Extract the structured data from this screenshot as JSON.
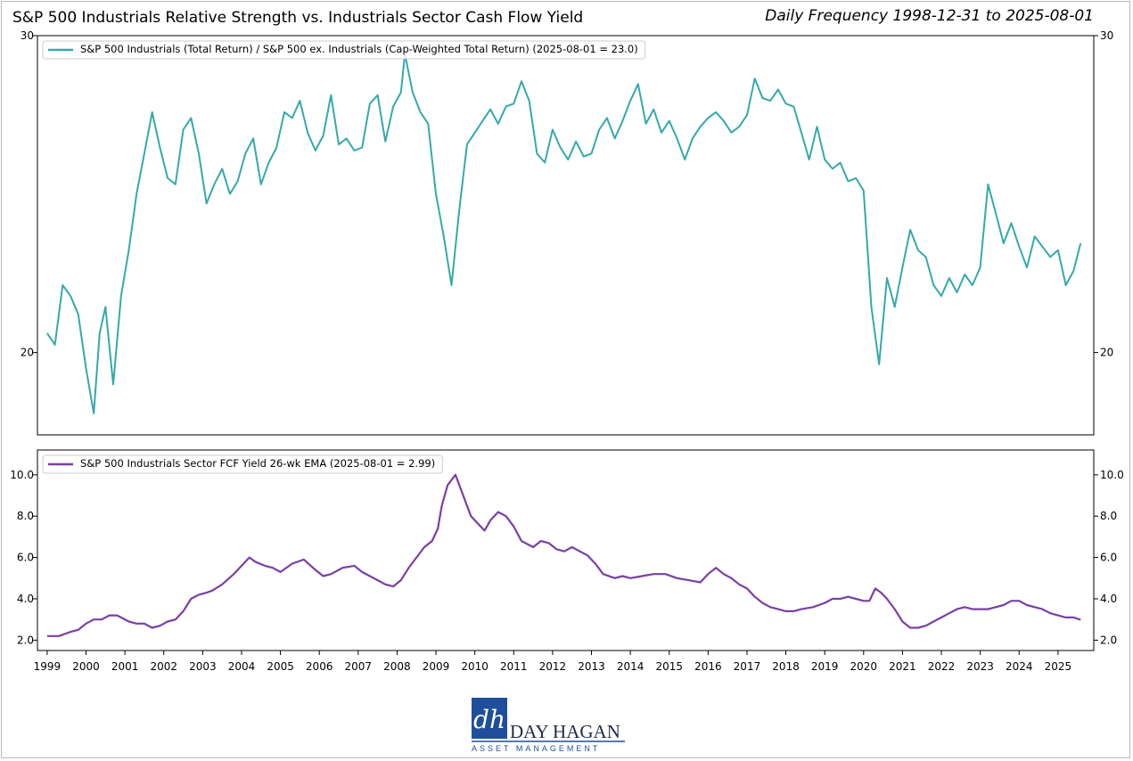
{
  "header": {
    "title": "S&P 500 Industrials Relative Strength vs. Industrials Sector Cash Flow Yield",
    "subtitle": "Daily Frequency 1998-12-31 to 2025-08-01"
  },
  "colors": {
    "series_top": "#36a9a9",
    "series_bottom": "#7a3fa4",
    "axis": "#000000",
    "logo_blue": "#1f4e9c"
  },
  "logo": {
    "monogram": "dh",
    "name": "DAY HAGAN",
    "tagline": "ASSET MANAGEMENT"
  },
  "chart_data": [
    {
      "type": "line",
      "panel": "top",
      "series": [
        {
          "name": "S&P 500 Industrials (Total Return) / S&P 500 ex. Industrials (Cap-Weighted Total Return) (2025-08-01 = 23.0)",
          "x": [
            1999.0,
            1999.2,
            1999.4,
            1999.6,
            1999.8,
            2000.0,
            2000.2,
            2000.35,
            2000.5,
            2000.7,
            2000.9,
            2001.1,
            2001.3,
            2001.5,
            2001.7,
            2001.9,
            2002.1,
            2002.3,
            2002.5,
            2002.7,
            2002.9,
            2003.1,
            2003.3,
            2003.5,
            2003.7,
            2003.9,
            2004.1,
            2004.3,
            2004.5,
            2004.7,
            2004.9,
            2005.1,
            2005.3,
            2005.5,
            2005.7,
            2005.9,
            2006.1,
            2006.3,
            2006.5,
            2006.7,
            2006.9,
            2007.1,
            2007.3,
            2007.5,
            2007.7,
            2007.9,
            2008.1,
            2008.2,
            2008.4,
            2008.6,
            2008.8,
            2009.0,
            2009.2,
            2009.4,
            2009.6,
            2009.8,
            2010.0,
            2010.2,
            2010.4,
            2010.6,
            2010.8,
            2011.0,
            2011.2,
            2011.4,
            2011.6,
            2011.8,
            2012.0,
            2012.2,
            2012.4,
            2012.6,
            2012.8,
            2013.0,
            2013.2,
            2013.4,
            2013.6,
            2013.8,
            2014.0,
            2014.2,
            2014.4,
            2014.6,
            2014.8,
            2015.0,
            2015.2,
            2015.4,
            2015.6,
            2015.8,
            2016.0,
            2016.2,
            2016.4,
            2016.6,
            2016.8,
            2017.0,
            2017.2,
            2017.4,
            2017.6,
            2017.8,
            2018.0,
            2018.2,
            2018.4,
            2018.6,
            2018.8,
            2019.0,
            2019.2,
            2019.4,
            2019.6,
            2019.8,
            2020.0,
            2020.2,
            2020.4,
            2020.6,
            2020.8,
            2021.0,
            2021.2,
            2021.4,
            2021.6,
            2021.8,
            2022.0,
            2022.2,
            2022.4,
            2022.6,
            2022.8,
            2023.0,
            2023.2,
            2023.4,
            2023.6,
            2023.8,
            2024.0,
            2024.2,
            2024.4,
            2024.6,
            2024.8,
            2025.0,
            2025.2,
            2025.4,
            2025.58
          ],
          "y": [
            20.5,
            20.2,
            21.8,
            21.5,
            21.0,
            19.6,
            18.5,
            20.5,
            21.2,
            19.2,
            21.5,
            22.8,
            24.5,
            25.8,
            27.2,
            26.0,
            25.0,
            24.8,
            26.6,
            27.0,
            25.8,
            24.2,
            24.8,
            25.3,
            24.5,
            24.9,
            25.8,
            26.3,
            24.8,
            25.5,
            26.0,
            27.2,
            27.0,
            27.6,
            26.5,
            25.9,
            26.4,
            27.8,
            26.1,
            26.3,
            25.9,
            26.0,
            27.5,
            27.8,
            26.2,
            27.4,
            27.9,
            29.3,
            27.9,
            27.2,
            26.8,
            24.5,
            23.2,
            21.8,
            24.0,
            26.1,
            26.5,
            26.9,
            27.3,
            26.8,
            27.4,
            27.5,
            28.3,
            27.6,
            25.8,
            25.5,
            26.6,
            26.0,
            25.6,
            26.2,
            25.7,
            25.8,
            26.6,
            27.0,
            26.3,
            26.9,
            27.6,
            28.2,
            26.8,
            27.3,
            26.5,
            26.9,
            26.3,
            25.6,
            26.3,
            26.7,
            27.0,
            27.2,
            26.9,
            26.5,
            26.7,
            27.1,
            28.4,
            27.7,
            27.6,
            28.0,
            27.5,
            27.4,
            26.5,
            25.6,
            26.7,
            25.6,
            25.3,
            25.5,
            24.9,
            25.0,
            24.6,
            21.2,
            19.7,
            22.0,
            21.2,
            22.3,
            23.4,
            22.8,
            22.6,
            21.8,
            21.5,
            22.0,
            21.6,
            22.1,
            21.8,
            22.3,
            24.8,
            23.9,
            23.0,
            23.6,
            22.9,
            22.3,
            23.2,
            22.9,
            22.6,
            22.8,
            21.8,
            22.2,
            23.0
          ]
        }
      ],
      "ylim": [
        18.0,
        30.0
      ],
      "yticks": [
        "20",
        "30"
      ],
      "xlim": [
        1998.75,
        2025.92
      ],
      "legend_placement": "upper-left",
      "grid": false
    },
    {
      "type": "line",
      "panel": "bottom",
      "series": [
        {
          "name": "S&P 500 Industrials Sector FCF Yield 26-wk EMA (2025-08-01 = 2.99)",
          "x": [
            1999.0,
            1999.3,
            1999.6,
            1999.8,
            2000.0,
            2000.2,
            2000.4,
            2000.6,
            2000.8,
            2000.9,
            2001.1,
            2001.3,
            2001.5,
            2001.7,
            2001.9,
            2002.1,
            2002.3,
            2002.5,
            2002.7,
            2002.9,
            2003.1,
            2003.25,
            2003.5,
            2003.8,
            2004.0,
            2004.2,
            2004.35,
            2004.6,
            2004.8,
            2005.0,
            2005.3,
            2005.6,
            2005.9,
            2006.1,
            2006.3,
            2006.6,
            2006.9,
            2007.1,
            2007.3,
            2007.5,
            2007.7,
            2007.9,
            2008.1,
            2008.3,
            2008.5,
            2008.7,
            2008.9,
            2009.05,
            2009.15,
            2009.3,
            2009.5,
            2009.7,
            2009.9,
            2010.1,
            2010.25,
            2010.4,
            2010.6,
            2010.8,
            2011.0,
            2011.2,
            2011.5,
            2011.7,
            2011.9,
            2012.1,
            2012.3,
            2012.5,
            2012.7,
            2012.9,
            2013.1,
            2013.3,
            2013.6,
            2013.8,
            2014.0,
            2014.3,
            2014.6,
            2014.9,
            2015.2,
            2015.5,
            2015.8,
            2016.0,
            2016.2,
            2016.4,
            2016.6,
            2016.8,
            2017.0,
            2017.2,
            2017.4,
            2017.6,
            2017.8,
            2018.0,
            2018.2,
            2018.4,
            2018.7,
            2019.0,
            2019.2,
            2019.4,
            2019.6,
            2019.8,
            2020.0,
            2020.15,
            2020.3,
            2020.45,
            2020.6,
            2020.8,
            2021.0,
            2021.2,
            2021.4,
            2021.6,
            2021.8,
            2022.0,
            2022.2,
            2022.4,
            2022.6,
            2022.8,
            2023.0,
            2023.2,
            2023.4,
            2023.6,
            2023.8,
            2024.0,
            2024.2,
            2024.4,
            2024.6,
            2024.8,
            2025.0,
            2025.2,
            2025.4,
            2025.58
          ],
          "y": [
            2.2,
            2.2,
            2.4,
            2.5,
            2.8,
            3.0,
            3.0,
            3.2,
            3.2,
            3.1,
            2.9,
            2.8,
            2.8,
            2.6,
            2.7,
            2.9,
            3.0,
            3.4,
            4.0,
            4.2,
            4.3,
            4.4,
            4.7,
            5.2,
            5.6,
            6.0,
            5.8,
            5.6,
            5.5,
            5.3,
            5.7,
            5.9,
            5.4,
            5.1,
            5.2,
            5.5,
            5.6,
            5.3,
            5.1,
            4.9,
            4.7,
            4.6,
            4.9,
            5.5,
            6.0,
            6.5,
            6.8,
            7.4,
            8.5,
            9.5,
            10.0,
            9.0,
            8.0,
            7.6,
            7.3,
            7.8,
            8.2,
            8.0,
            7.5,
            6.8,
            6.5,
            6.8,
            6.7,
            6.4,
            6.3,
            6.5,
            6.3,
            6.1,
            5.7,
            5.2,
            5.0,
            5.1,
            5.0,
            5.1,
            5.2,
            5.2,
            5.0,
            4.9,
            4.8,
            5.2,
            5.5,
            5.2,
            5.0,
            4.7,
            4.5,
            4.1,
            3.8,
            3.6,
            3.5,
            3.4,
            3.4,
            3.5,
            3.6,
            3.8,
            4.0,
            4.0,
            4.1,
            4.0,
            3.9,
            3.9,
            4.5,
            4.3,
            4.0,
            3.5,
            2.9,
            2.6,
            2.6,
            2.7,
            2.9,
            3.1,
            3.3,
            3.5,
            3.6,
            3.5,
            3.5,
            3.5,
            3.6,
            3.7,
            3.9,
            3.9,
            3.7,
            3.6,
            3.5,
            3.3,
            3.2,
            3.1,
            3.1,
            2.99
          ]
        }
      ],
      "ylim": [
        1.5,
        11.2
      ],
      "yticks": [
        "2.0",
        "4.0",
        "6.0",
        "8.0",
        "10.0"
      ],
      "xlim": [
        1998.75,
        2025.92
      ],
      "xticks": [
        "1999",
        "2000",
        "2001",
        "2002",
        "2003",
        "2004",
        "2005",
        "2006",
        "2007",
        "2008",
        "2009",
        "2010",
        "2011",
        "2012",
        "2013",
        "2014",
        "2015",
        "2016",
        "2017",
        "2018",
        "2019",
        "2020",
        "2021",
        "2022",
        "2023",
        "2024",
        "2025"
      ],
      "legend_placement": "upper-left",
      "grid": false
    }
  ]
}
